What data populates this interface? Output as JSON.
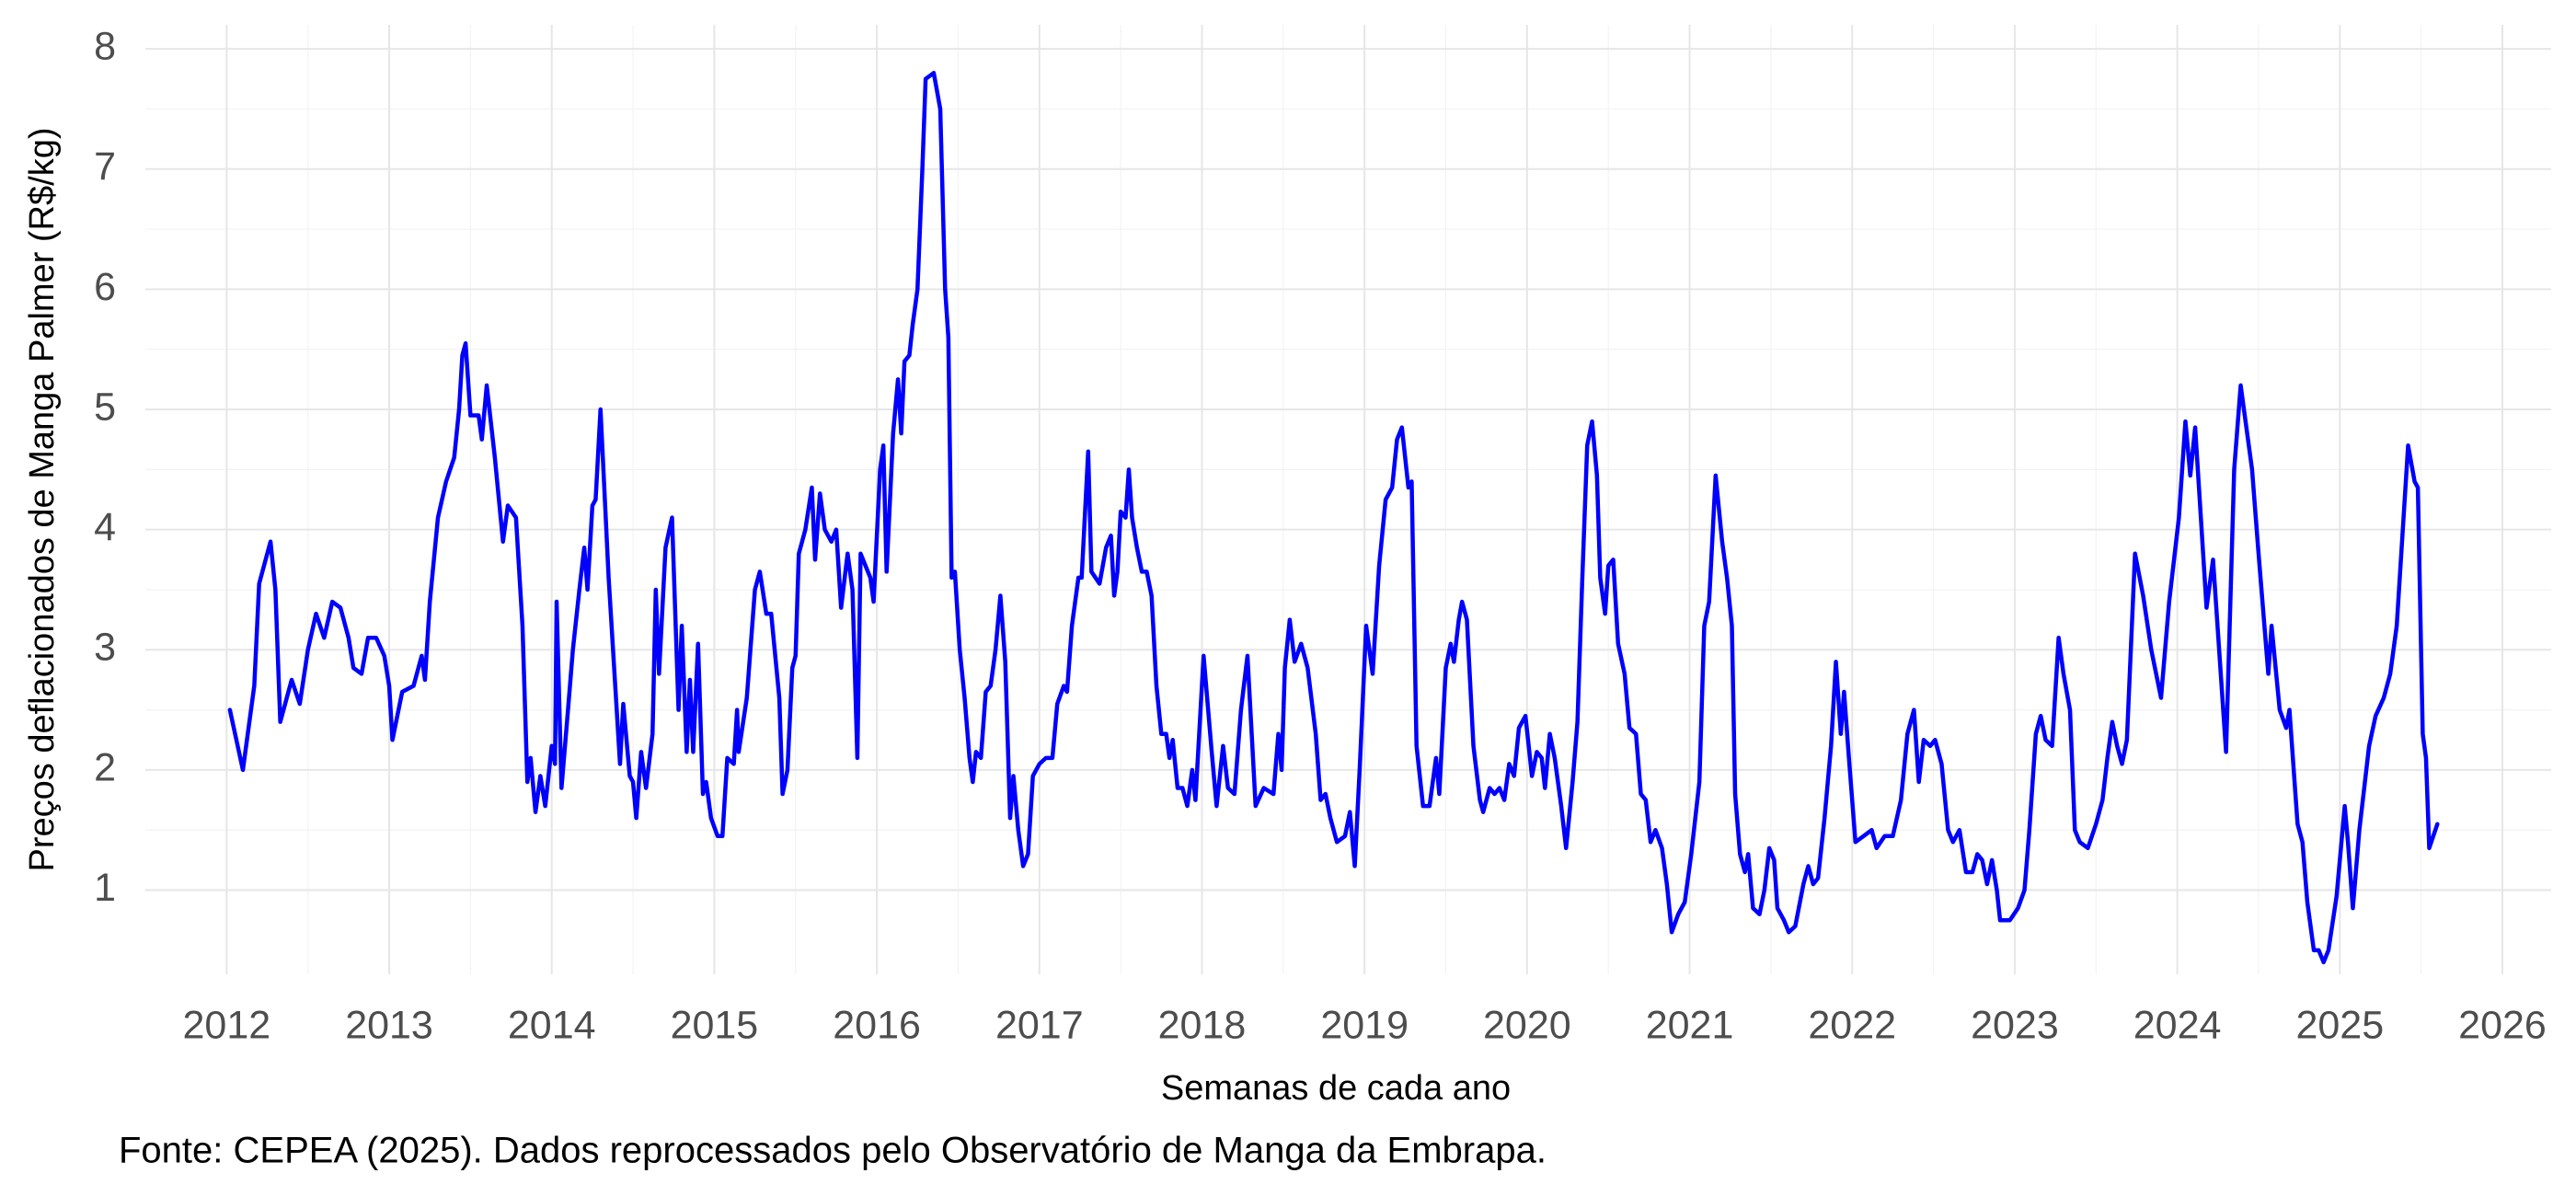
{
  "chart_data": {
    "type": "line",
    "y_label": "Preços deflacionados de Manga Palmer (R$/kg)",
    "x_label": "Semanas de cada ano",
    "caption": "Fonte: CEPEA (2025). Dados reprocessados pelo Observatório de Manga da Embrapa.",
    "color": "#0000ff",
    "grid": true,
    "minor_grid": true,
    "xlim": [
      2011.5,
      2026.3
    ],
    "xticks": [
      2012,
      2013,
      2014,
      2015,
      2016,
      2017,
      2018,
      2019,
      2020,
      2021,
      2022,
      2023,
      2024,
      2025,
      2026
    ],
    "ylim": [
      0.3,
      8.2
    ],
    "yticks": [
      1,
      2,
      3,
      4,
      5,
      6,
      7,
      8
    ],
    "x": [
      2012.02,
      2012.1,
      2012.17,
      2012.2,
      2012.27,
      2012.3,
      2012.33,
      2012.4,
      2012.45,
      2012.5,
      2012.55,
      2012.6,
      2012.65,
      2012.7,
      2012.75,
      2012.78,
      2012.83,
      2012.87,
      2012.92,
      2012.97,
      2013.0,
      2013.02,
      2013.08,
      2013.15,
      2013.2,
      2013.22,
      2013.25,
      2013.3,
      2013.35,
      2013.4,
      2013.43,
      2013.45,
      2013.47,
      2013.5,
      2013.55,
      2013.57,
      2013.6,
      2013.65,
      2013.7,
      2013.73,
      2013.78,
      2013.82,
      2013.85,
      2013.87,
      2013.9,
      2013.93,
      2013.96,
      2014.0,
      2014.02,
      2014.03,
      2014.06,
      2014.1,
      2014.13,
      2014.17,
      2014.2,
      2014.22,
      2014.25,
      2014.27,
      2014.3,
      2014.35,
      2014.42,
      2014.44,
      2014.48,
      2014.5,
      2014.52,
      2014.55,
      2014.58,
      2014.62,
      2014.64,
      2014.66,
      2014.7,
      2014.74,
      2014.78,
      2014.8,
      2014.83,
      2014.85,
      2014.87,
      2014.9,
      2014.93,
      2014.95,
      2014.98,
      2015.02,
      2015.05,
      2015.08,
      2015.12,
      2015.14,
      2015.15,
      2015.2,
      2015.25,
      2015.28,
      2015.32,
      2015.35,
      2015.4,
      2015.42,
      2015.45,
      2015.48,
      2015.5,
      2015.52,
      2015.56,
      2015.6,
      2015.62,
      2015.65,
      2015.68,
      2015.72,
      2015.75,
      2015.78,
      2015.82,
      2015.85,
      2015.88,
      2015.9,
      2015.93,
      2015.96,
      2015.98,
      2016.02,
      2016.04,
      2016.06,
      2016.1,
      2016.13,
      2016.15,
      2016.17,
      2016.2,
      2016.22,
      2016.25,
      2016.28,
      2016.3,
      2016.35,
      2016.39,
      2016.42,
      2016.44,
      2016.46,
      2016.48,
      2016.51,
      2016.54,
      2016.57,
      2016.59,
      2016.61,
      2016.64,
      2016.67,
      2016.7,
      2016.73,
      2016.76,
      2016.79,
      2016.82,
      2016.84,
      2016.87,
      2016.9,
      2016.93,
      2016.96,
      2017.0,
      2017.04,
      2017.08,
      2017.11,
      2017.15,
      2017.17,
      2017.2,
      2017.24,
      2017.26,
      2017.3,
      2017.32,
      2017.37,
      2017.41,
      2017.44,
      2017.46,
      2017.48,
      2017.5,
      2017.53,
      2017.55,
      2017.57,
      2017.6,
      2017.63,
      2017.66,
      2017.69,
      2017.72,
      2017.75,
      2017.78,
      2017.8,
      2017.82,
      2017.85,
      2017.88,
      2017.91,
      2017.94,
      2017.96,
      2018.01,
      2018.06,
      2018.09,
      2018.13,
      2018.16,
      2018.2,
      2018.24,
      2018.28,
      2018.33,
      2018.38,
      2018.44,
      2018.47,
      2018.49,
      2018.51,
      2018.54,
      2018.57,
      2018.61,
      2018.65,
      2018.7,
      2018.73,
      2018.76,
      2018.79,
      2018.83,
      2018.88,
      2018.91,
      2018.94,
      2018.97,
      2019.01,
      2019.05,
      2019.09,
      2019.13,
      2019.17,
      2019.2,
      2019.23,
      2019.27,
      2019.29,
      2019.32,
      2019.36,
      2019.4,
      2019.44,
      2019.46,
      2019.5,
      2019.53,
      2019.55,
      2019.58,
      2019.6,
      2019.63,
      2019.67,
      2019.71,
      2019.73,
      2019.77,
      2019.8,
      2019.83,
      2019.86,
      2019.89,
      2019.92,
      2019.95,
      2019.99,
      2020.03,
      2020.06,
      2020.09,
      2020.11,
      2020.14,
      2020.17,
      2020.21,
      2020.24,
      2020.28,
      2020.31,
      2020.34,
      2020.37,
      2020.4,
      2020.43,
      2020.45,
      2020.48,
      2020.5,
      2020.53,
      2020.56,
      2020.6,
      2020.63,
      2020.67,
      2020.7,
      2020.73,
      2020.76,
      2020.79,
      2020.83,
      2020.86,
      2020.89,
      2020.93,
      2020.97,
      2021.01,
      2021.06,
      2021.09,
      2021.12,
      2021.16,
      2021.2,
      2021.23,
      2021.26,
      2021.28,
      2021.31,
      2021.34,
      2021.36,
      2021.39,
      2021.43,
      2021.46,
      2021.49,
      2021.52,
      2021.54,
      2021.58,
      2021.61,
      2021.65,
      2021.7,
      2021.73,
      2021.76,
      2021.79,
      2021.83,
      2021.87,
      2021.9,
      2021.93,
      2021.95,
      2021.98,
      2022.02,
      2022.07,
      2022.12,
      2022.15,
      2022.2,
      2022.25,
      2022.3,
      2022.34,
      2022.38,
      2022.41,
      2022.44,
      2022.48,
      2022.51,
      2022.55,
      2022.59,
      2022.62,
      2022.66,
      2022.7,
      2022.74,
      2022.77,
      2022.8,
      2022.83,
      2022.86,
      2022.89,
      2022.91,
      2022.97,
      2023.02,
      2023.06,
      2023.09,
      2023.13,
      2023.16,
      2023.19,
      2023.23,
      2023.27,
      2023.3,
      2023.34,
      2023.37,
      2023.4,
      2023.45,
      2023.5,
      2023.54,
      2023.57,
      2023.6,
      2023.63,
      2023.66,
      2023.69,
      2023.74,
      2023.79,
      2023.84,
      2023.9,
      2023.95,
      2024.01,
      2024.05,
      2024.08,
      2024.11,
      2024.18,
      2024.22,
      2024.3,
      2024.35,
      2024.39,
      2024.42,
      2024.46,
      2024.5,
      2024.56,
      2024.58,
      2024.63,
      2024.67,
      2024.69,
      2024.74,
      2024.77,
      2024.8,
      2024.84,
      2024.87,
      2024.9,
      2024.93,
      2024.98,
      2025.03,
      2025.05,
      2025.08,
      2025.12,
      2025.18,
      2025.22,
      2025.27,
      2025.31,
      2025.35,
      2025.42,
      2025.46,
      2025.48,
      2025.51,
      2025.53,
      2025.55,
      2025.6
    ],
    "values": [
      2.5,
      2.0,
      2.7,
      3.55,
      3.9,
      3.5,
      2.4,
      2.75,
      2.55,
      3.0,
      3.3,
      3.1,
      3.4,
      3.35,
      3.1,
      2.85,
      2.8,
      3.1,
      3.1,
      2.95,
      2.7,
      2.25,
      2.65,
      2.7,
      2.95,
      2.75,
      3.4,
      4.1,
      4.4,
      4.6,
      5.0,
      5.45,
      5.55,
      4.95,
      4.95,
      4.75,
      5.2,
      4.6,
      3.9,
      4.2,
      4.1,
      3.2,
      1.9,
      2.1,
      1.65,
      1.95,
      1.7,
      2.2,
      2.05,
      3.4,
      1.85,
      2.5,
      3.0,
      3.5,
      3.85,
      3.5,
      4.2,
      4.25,
      5.0,
      3.6,
      2.05,
      2.55,
      1.95,
      1.9,
      1.6,
      2.15,
      1.85,
      2.3,
      3.5,
      2.8,
      3.85,
      4.1,
      2.5,
      3.2,
      2.15,
      2.75,
      2.15,
      3.05,
      1.8,
      1.9,
      1.6,
      1.45,
      1.45,
      2.1,
      2.05,
      2.5,
      2.15,
      2.6,
      3.5,
      3.65,
      3.3,
      3.3,
      2.6,
      1.8,
      2.0,
      2.85,
      2.95,
      3.8,
      4.0,
      4.35,
      3.75,
      4.3,
      4.0,
      3.9,
      4.0,
      3.35,
      3.8,
      3.5,
      2.1,
      3.8,
      3.7,
      3.6,
      3.4,
      4.5,
      4.7,
      3.65,
      4.8,
      5.25,
      4.8,
      5.4,
      5.45,
      5.7,
      6.0,
      7.0,
      7.75,
      7.8,
      7.5,
      6.0,
      5.6,
      3.6,
      3.65,
      3.0,
      2.6,
      2.1,
      1.9,
      2.15,
      2.1,
      2.65,
      2.7,
      3.0,
      3.45,
      2.9,
      1.6,
      1.95,
      1.5,
      1.2,
      1.3,
      1.95,
      2.05,
      2.1,
      2.1,
      2.55,
      2.7,
      2.65,
      3.2,
      3.6,
      3.6,
      4.65,
      3.65,
      3.55,
      3.85,
      3.95,
      3.45,
      3.65,
      4.15,
      4.1,
      4.5,
      4.1,
      3.85,
      3.65,
      3.65,
      3.45,
      2.7,
      2.3,
      2.3,
      2.1,
      2.25,
      1.85,
      1.85,
      1.7,
      2.0,
      1.75,
      2.95,
      2.15,
      1.7,
      2.2,
      1.85,
      1.8,
      2.5,
      2.95,
      1.7,
      1.85,
      1.8,
      2.3,
      2.0,
      2.85,
      3.25,
      2.9,
      3.05,
      2.85,
      2.3,
      1.75,
      1.8,
      1.6,
      1.4,
      1.45,
      1.65,
      1.2,
      2.0,
      3.2,
      2.8,
      3.7,
      4.25,
      4.35,
      4.75,
      4.85,
      4.35,
      4.4,
      2.2,
      1.7,
      1.7,
      2.1,
      1.8,
      2.85,
      3.05,
      2.9,
      3.25,
      3.4,
      3.25,
      2.2,
      1.75,
      1.65,
      1.85,
      1.8,
      1.85,
      1.75,
      2.05,
      1.95,
      2.35,
      2.45,
      1.95,
      2.15,
      2.1,
      1.85,
      2.3,
      2.1,
      1.7,
      1.35,
      1.9,
      2.4,
      3.6,
      4.7,
      4.9,
      4.45,
      3.6,
      3.3,
      3.7,
      3.75,
      3.05,
      2.8,
      2.35,
      2.3,
      1.8,
      1.75,
      1.4,
      1.5,
      1.35,
      1.05,
      0.65,
      0.8,
      0.9,
      1.3,
      1.9,
      3.2,
      3.4,
      4.45,
      3.9,
      3.6,
      3.2,
      1.8,
      1.3,
      1.15,
      1.3,
      0.85,
      0.8,
      1.0,
      1.35,
      1.25,
      0.85,
      0.75,
      0.65,
      0.7,
      1.05,
      1.2,
      1.05,
      1.1,
      1.6,
      2.2,
      2.9,
      2.3,
      2.65,
      2.1,
      1.4,
      1.45,
      1.5,
      1.35,
      1.45,
      1.45,
      1.75,
      2.3,
      2.5,
      1.9,
      2.25,
      2.2,
      2.25,
      2.05,
      1.5,
      1.4,
      1.5,
      1.15,
      1.15,
      1.3,
      1.25,
      1.05,
      1.25,
      1.0,
      0.75,
      0.75,
      0.85,
      1.0,
      1.5,
      2.3,
      2.45,
      2.25,
      2.2,
      3.1,
      2.8,
      2.5,
      1.5,
      1.4,
      1.35,
      1.55,
      1.75,
      2.1,
      2.4,
      2.2,
      2.05,
      2.25,
      3.8,
      3.45,
      3.0,
      2.6,
      3.4,
      4.1,
      4.9,
      4.45,
      4.85,
      3.35,
      3.75,
      2.15,
      4.5,
      5.2,
      4.9,
      4.5,
      3.8,
      2.8,
      3.2,
      2.5,
      2.35,
      2.5,
      1.55,
      1.4,
      0.9,
      0.5,
      0.5,
      0.4,
      0.5,
      0.95,
      1.7,
      1.4,
      0.85,
      1.5,
      2.2,
      2.45,
      2.6,
      2.8,
      3.2,
      4.7,
      4.4,
      4.35,
      2.3,
      2.1,
      1.35,
      1.55
    ]
  }
}
